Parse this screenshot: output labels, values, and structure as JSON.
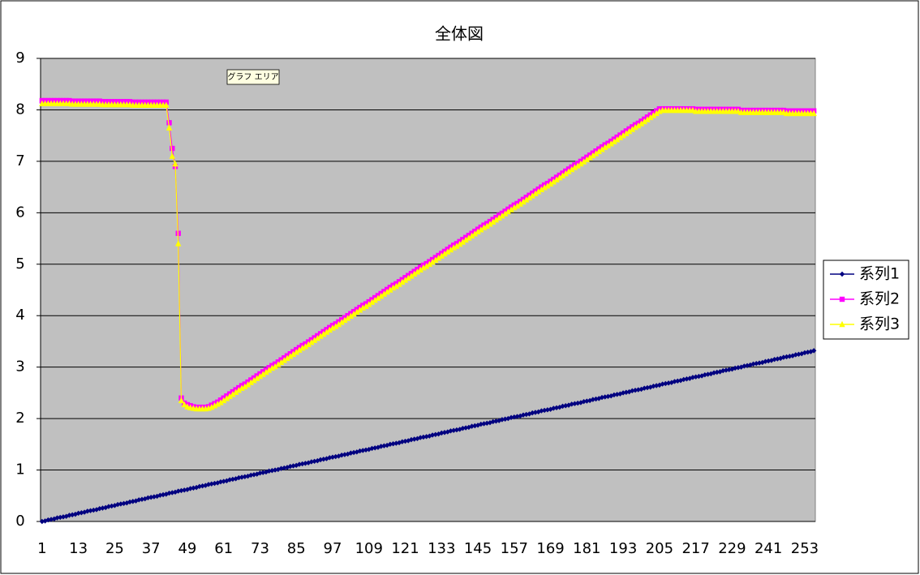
{
  "chart_data": {
    "type": "line",
    "title": "全体図",
    "tooltip": "グラフ エリア",
    "categories": [
      "1",
      null,
      null,
      null,
      null,
      null,
      null,
      null,
      null,
      null,
      null,
      null,
      "13",
      null,
      null,
      null,
      null,
      null,
      null,
      null,
      null,
      null,
      null,
      null,
      "25",
      null,
      null,
      null,
      null,
      null,
      null,
      null,
      null,
      null,
      null,
      null,
      "37",
      null,
      null,
      null,
      null,
      null,
      null,
      null,
      null,
      null,
      null,
      null,
      "49",
      null,
      null,
      null,
      null,
      null,
      null,
      null,
      null,
      null,
      null,
      null,
      "61",
      null,
      null,
      null,
      null,
      null,
      null,
      null,
      null,
      null,
      null,
      null,
      "73",
      null,
      null,
      null,
      null,
      null,
      null,
      null,
      null,
      null,
      null,
      null,
      "85",
      null,
      null,
      null,
      null,
      null,
      null,
      null,
      null,
      null,
      null,
      null,
      "97",
      null,
      null,
      null,
      null,
      null,
      null,
      null,
      null,
      null,
      null,
      null,
      "109",
      null,
      null,
      null,
      null,
      null,
      null,
      null,
      null,
      null,
      null,
      null,
      "121",
      null,
      null,
      null,
      null,
      null,
      null,
      null,
      null,
      null,
      null,
      null,
      "133",
      null,
      null,
      null,
      null,
      null,
      null,
      null,
      null,
      null,
      null,
      null,
      "145",
      null,
      null,
      null,
      null,
      null,
      null,
      null,
      null,
      null,
      null,
      null,
      "157",
      null,
      null,
      null,
      null,
      null,
      null,
      null,
      null,
      null,
      null,
      null,
      "169",
      null,
      null,
      null,
      null,
      null,
      null,
      null,
      null,
      null,
      null,
      null,
      "181",
      null,
      null,
      null,
      null,
      null,
      null,
      null,
      null,
      null,
      null,
      null,
      "193",
      null,
      null,
      null,
      null,
      null,
      null,
      null,
      null,
      null,
      null,
      null,
      "205",
      null,
      null,
      null,
      null,
      null,
      null,
      null,
      null,
      null,
      null,
      null,
      "217",
      null,
      null,
      null,
      null,
      null,
      null,
      null,
      null,
      null,
      null,
      null,
      "229",
      null,
      null,
      null,
      null,
      null,
      null,
      null,
      null,
      null,
      null,
      null,
      "241",
      null,
      null,
      null,
      null,
      null,
      null,
      null,
      null,
      null,
      null,
      null,
      "253",
      null,
      null,
      null
    ],
    "ylim": [
      0,
      9
    ],
    "yticks": [
      0,
      1,
      2,
      3,
      4,
      5,
      6,
      7,
      8,
      9
    ],
    "grid": true,
    "legend": "right",
    "background": "#c0c0c0",
    "series": [
      {
        "name": "系列1",
        "color": "#000080",
        "marker": "diamond",
        "values": [
          0,
          0.01,
          0.03,
          0.04,
          0.05,
          0.07,
          0.08,
          0.09,
          0.1,
          0.12,
          0.13,
          0.14,
          0.16,
          0.17,
          0.18,
          0.2,
          0.21,
          0.22,
          0.23,
          0.25,
          0.26,
          0.27,
          0.29,
          0.3,
          0.31,
          0.33,
          0.34,
          0.35,
          0.36,
          0.38,
          0.39,
          0.4,
          0.42,
          0.43,
          0.44,
          0.46,
          0.47,
          0.48,
          0.49,
          0.51,
          0.52,
          0.53,
          0.55,
          0.56,
          0.57,
          0.59,
          0.6,
          0.61,
          0.62,
          0.64,
          0.65,
          0.66,
          0.68,
          0.69,
          0.7,
          0.72,
          0.73,
          0.74,
          0.75,
          0.77,
          0.78,
          0.79,
          0.81,
          0.82,
          0.83,
          0.85,
          0.86,
          0.87,
          0.88,
          0.9,
          0.91,
          0.92,
          0.94,
          0.95,
          0.96,
          0.98,
          0.99,
          1.0,
          1.01,
          1.03,
          1.04,
          1.05,
          1.07,
          1.08,
          1.09,
          1.11,
          1.12,
          1.13,
          1.14,
          1.16,
          1.17,
          1.18,
          1.2,
          1.21,
          1.22,
          1.24,
          1.25,
          1.26,
          1.27,
          1.29,
          1.3,
          1.31,
          1.33,
          1.34,
          1.35,
          1.37,
          1.38,
          1.39,
          1.4,
          1.42,
          1.43,
          1.44,
          1.46,
          1.47,
          1.48,
          1.5,
          1.51,
          1.52,
          1.53,
          1.55,
          1.56,
          1.57,
          1.59,
          1.6,
          1.61,
          1.63,
          1.64,
          1.65,
          1.66,
          1.68,
          1.69,
          1.7,
          1.72,
          1.73,
          1.74,
          1.76,
          1.77,
          1.78,
          1.79,
          1.81,
          1.82,
          1.83,
          1.85,
          1.86,
          1.87,
          1.89,
          1.9,
          1.91,
          1.92,
          1.94,
          1.95,
          1.96,
          1.98,
          1.99,
          2.0,
          2.02,
          2.03,
          2.04,
          2.05,
          2.07,
          2.08,
          2.09,
          2.11,
          2.12,
          2.13,
          2.15,
          2.16,
          2.17,
          2.18,
          2.2,
          2.21,
          2.22,
          2.24,
          2.25,
          2.26,
          2.28,
          2.29,
          2.3,
          2.31,
          2.33,
          2.34,
          2.35,
          2.37,
          2.38,
          2.39,
          2.41,
          2.42,
          2.43,
          2.44,
          2.46,
          2.47,
          2.48,
          2.5,
          2.51,
          2.52,
          2.54,
          2.55,
          2.56,
          2.57,
          2.59,
          2.6,
          2.61,
          2.63,
          2.64,
          2.65,
          2.67,
          2.68,
          2.69,
          2.7,
          2.72,
          2.73,
          2.74,
          2.76,
          2.77,
          2.78,
          2.8,
          2.81,
          2.82,
          2.83,
          2.85,
          2.86,
          2.87,
          2.89,
          2.9,
          2.91,
          2.93,
          2.94,
          2.95,
          2.96,
          2.98,
          2.99,
          3.0,
          3.02,
          3.03,
          3.04,
          3.06,
          3.07,
          3.08,
          3.09,
          3.11,
          3.12,
          3.13,
          3.15,
          3.16,
          3.17,
          3.19,
          3.2,
          3.21,
          3.22,
          3.24,
          3.25,
          3.26,
          3.28,
          3.29,
          3.3,
          3.32
        ]
      },
      {
        "name": "系列2",
        "color": "#ff00ff",
        "marker": "square",
        "values": [
          8.18,
          8.18,
          8.18,
          8.18,
          8.18,
          8.18,
          8.18,
          8.18,
          8.18,
          8.18,
          8.17,
          8.17,
          8.17,
          8.17,
          8.17,
          8.17,
          8.17,
          8.17,
          8.17,
          8.17,
          8.16,
          8.16,
          8.16,
          8.16,
          8.16,
          8.16,
          8.16,
          8.16,
          8.16,
          8.16,
          8.15,
          8.15,
          8.15,
          8.15,
          8.15,
          8.15,
          8.15,
          8.15,
          8.15,
          8.15,
          8.15,
          8.15,
          7.75,
          7.25,
          6.9,
          5.6,
          2.4,
          2.3,
          2.27,
          2.25,
          2.23,
          2.22,
          2.22,
          2.22,
          2.22,
          2.23,
          2.26,
          2.29,
          2.32,
          2.36,
          2.4,
          2.44,
          2.48,
          2.52,
          2.56,
          2.6,
          2.64,
          2.67,
          2.71,
          2.75,
          2.79,
          2.83,
          2.87,
          2.91,
          2.95,
          2.99,
          3.03,
          3.06,
          3.1,
          3.14,
          3.18,
          3.22,
          3.26,
          3.3,
          3.34,
          3.38,
          3.42,
          3.45,
          3.49,
          3.53,
          3.57,
          3.61,
          3.65,
          3.69,
          3.73,
          3.77,
          3.81,
          3.84,
          3.88,
          3.92,
          3.96,
          4.0,
          4.04,
          4.08,
          4.12,
          4.16,
          4.2,
          4.23,
          4.27,
          4.31,
          4.35,
          4.39,
          4.43,
          4.47,
          4.51,
          4.55,
          4.59,
          4.62,
          4.66,
          4.7,
          4.74,
          4.78,
          4.82,
          4.86,
          4.9,
          4.94,
          4.98,
          5.01,
          5.05,
          5.09,
          5.13,
          5.17,
          5.21,
          5.25,
          5.29,
          5.33,
          5.37,
          5.4,
          5.44,
          5.48,
          5.52,
          5.56,
          5.6,
          5.64,
          5.68,
          5.72,
          5.76,
          5.79,
          5.83,
          5.87,
          5.91,
          5.95,
          5.99,
          6.03,
          6.07,
          6.11,
          6.15,
          6.18,
          6.22,
          6.26,
          6.3,
          6.34,
          6.38,
          6.42,
          6.46,
          6.5,
          6.54,
          6.57,
          6.61,
          6.65,
          6.69,
          6.73,
          6.77,
          6.81,
          6.85,
          6.89,
          6.93,
          6.96,
          7.0,
          7.04,
          7.08,
          7.12,
          7.16,
          7.2,
          7.24,
          7.28,
          7.32,
          7.35,
          7.39,
          7.43,
          7.47,
          7.51,
          7.55,
          7.59,
          7.63,
          7.67,
          7.71,
          7.74,
          7.78,
          7.82,
          7.86,
          7.9,
          7.94,
          7.98,
          8.02,
          8.02,
          8.02,
          8.02,
          8.02,
          8.02,
          8.02,
          8.02,
          8.02,
          8.02,
          8.02,
          8.02,
          8.01,
          8.01,
          8.01,
          8.01,
          8.01,
          8.01,
          8.01,
          8.01,
          8.01,
          8.01,
          8.01,
          8.01,
          8.01,
          8.01,
          8.01,
          7.99,
          7.99,
          7.99,
          7.99,
          7.99,
          7.99,
          7.99,
          7.99,
          7.99,
          7.99,
          7.99,
          7.99,
          7.99,
          7.99,
          7.99,
          7.98,
          7.98,
          7.98,
          7.98,
          7.98,
          7.98,
          7.98,
          7.98,
          7.98,
          7.98
        ]
      },
      {
        "name": "系列3",
        "color": "#ffff00",
        "marker": "triangle",
        "values": [
          8.12,
          8.12,
          8.12,
          8.12,
          8.12,
          8.12,
          8.12,
          8.12,
          8.12,
          8.12,
          8.11,
          8.11,
          8.11,
          8.11,
          8.11,
          8.11,
          8.11,
          8.11,
          8.11,
          8.11,
          8.1,
          8.1,
          8.1,
          8.1,
          8.1,
          8.1,
          8.1,
          8.1,
          8.1,
          8.1,
          8.09,
          8.09,
          8.09,
          8.09,
          8.09,
          8.09,
          8.09,
          8.09,
          8.09,
          8.09,
          8.09,
          8.09,
          7.65,
          7.1,
          6.95,
          5.4,
          2.35,
          2.27,
          2.23,
          2.21,
          2.2,
          2.19,
          2.19,
          2.19,
          2.19,
          2.2,
          2.22,
          2.25,
          2.28,
          2.31,
          2.35,
          2.39,
          2.43,
          2.47,
          2.51,
          2.55,
          2.59,
          2.62,
          2.66,
          2.7,
          2.74,
          2.78,
          2.82,
          2.86,
          2.9,
          2.94,
          2.98,
          3.01,
          3.05,
          3.09,
          3.13,
          3.17,
          3.21,
          3.25,
          3.29,
          3.33,
          3.37,
          3.4,
          3.44,
          3.48,
          3.52,
          3.56,
          3.6,
          3.64,
          3.68,
          3.72,
          3.76,
          3.79,
          3.83,
          3.87,
          3.91,
          3.95,
          3.99,
          4.03,
          4.07,
          4.11,
          4.15,
          4.18,
          4.22,
          4.26,
          4.3,
          4.34,
          4.38,
          4.42,
          4.46,
          4.5,
          4.54,
          4.57,
          4.61,
          4.65,
          4.69,
          4.73,
          4.77,
          4.81,
          4.85,
          4.89,
          4.93,
          4.96,
          5.0,
          5.04,
          5.08,
          5.12,
          5.16,
          5.2,
          5.24,
          5.28,
          5.32,
          5.35,
          5.39,
          5.43,
          5.47,
          5.51,
          5.55,
          5.59,
          5.63,
          5.67,
          5.71,
          5.74,
          5.78,
          5.82,
          5.86,
          5.9,
          5.94,
          5.98,
          6.02,
          6.06,
          6.1,
          6.13,
          6.17,
          6.21,
          6.25,
          6.29,
          6.33,
          6.37,
          6.41,
          6.45,
          6.49,
          6.52,
          6.56,
          6.6,
          6.64,
          6.68,
          6.72,
          6.76,
          6.8,
          6.84,
          6.88,
          6.91,
          6.95,
          6.99,
          7.03,
          7.07,
          7.11,
          7.15,
          7.19,
          7.23,
          7.27,
          7.3,
          7.34,
          7.38,
          7.42,
          7.46,
          7.5,
          7.54,
          7.58,
          7.62,
          7.66,
          7.69,
          7.73,
          7.77,
          7.81,
          7.85,
          7.89,
          7.93,
          7.97,
          7.99,
          7.99,
          7.99,
          7.99,
          7.99,
          7.99,
          7.99,
          7.99,
          7.99,
          7.99,
          7.99,
          7.97,
          7.97,
          7.97,
          7.97,
          7.97,
          7.97,
          7.97,
          7.97,
          7.97,
          7.97,
          7.97,
          7.97,
          7.97,
          7.97,
          7.97,
          7.95,
          7.95,
          7.95,
          7.95,
          7.95,
          7.95,
          7.95,
          7.95,
          7.95,
          7.95,
          7.95,
          7.95,
          7.95,
          7.95,
          7.95,
          7.93,
          7.93,
          7.93,
          7.93,
          7.93,
          7.93,
          7.93,
          7.93,
          7.93,
          7.93
        ]
      }
    ]
  }
}
